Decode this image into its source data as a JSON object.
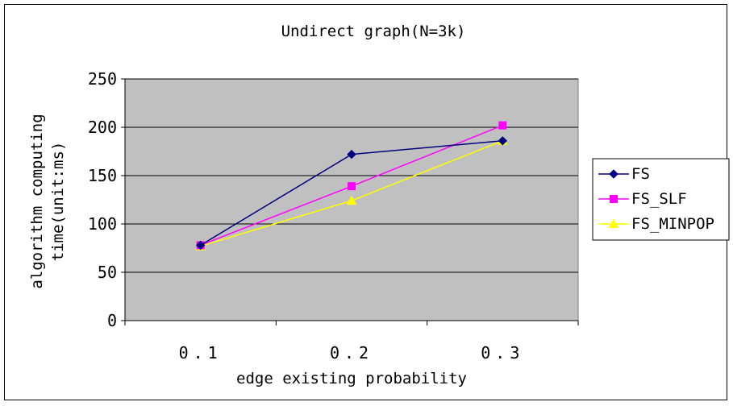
{
  "chart_data": {
    "type": "line",
    "title": "Undirect graph(N=3k)",
    "xlabel": "edge existing probability",
    "ylabel_lines": [
      "algorithm computing",
      "time(unit:ms)"
    ],
    "categories": [
      "0.1",
      "0.2",
      "0.3"
    ],
    "ylim": [
      0,
      250
    ],
    "yticks": [
      "0",
      "50",
      "100",
      "150",
      "200",
      "250"
    ],
    "grid": true,
    "legend_position": "right",
    "plot_background": "#c0c0c0",
    "series": [
      {
        "name": "FS",
        "values": [
          78,
          172,
          186
        ],
        "color": "#000080",
        "marker": "diamond"
      },
      {
        "name": "FS_SLF",
        "values": [
          78,
          139,
          202
        ],
        "color": "#ff00ff",
        "marker": "square"
      },
      {
        "name": "FS_MINPOP",
        "values": [
          77,
          124,
          186
        ],
        "color": "#ffff00",
        "marker": "triangle"
      }
    ]
  }
}
